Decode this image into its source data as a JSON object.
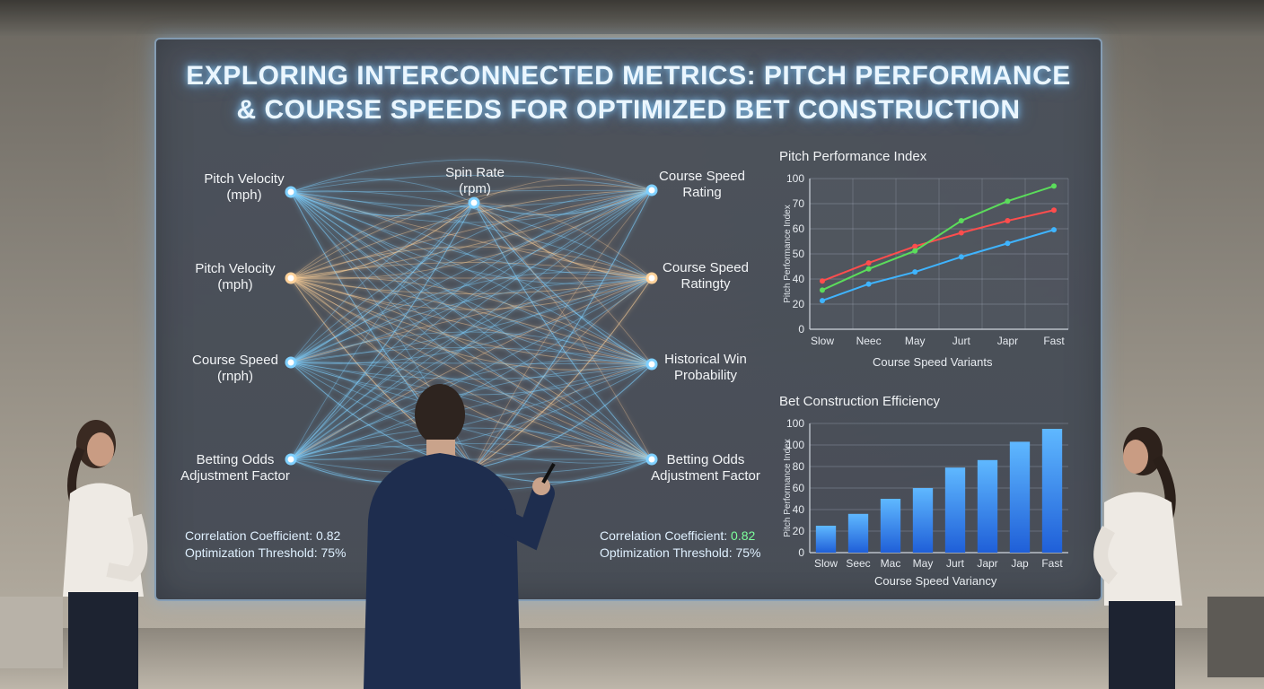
{
  "title": {
    "line1": "EXPLORING INTERCONNECTED METRICS: PITCH PERFORMANCE",
    "line2": "& COURSE SPEEDS FOR OPTIMIZED BET CONSTRUCTION"
  },
  "network": {
    "left_nodes": [
      {
        "l1": "Pitch Velocity",
        "l2": "(mph)",
        "color": "#7fd0ff"
      },
      {
        "l1": "Pitch Velocity",
        "l2": "(mph)",
        "color": "#ffd29a"
      },
      {
        "l1": "Course Speed",
        "l2": "(rnph)",
        "color": "#7fd0ff"
      },
      {
        "l1": "Betting Odds",
        "l2": "Adjustment Factor",
        "color": "#7fd0ff"
      }
    ],
    "center_nodes": [
      {
        "l1": "Spin Rate",
        "l2": "(rpm)"
      }
    ],
    "right_nodes": [
      {
        "l1": "Course Speed",
        "l2": "Rating",
        "color": "#7fd0ff"
      },
      {
        "l1": "Course Speed",
        "l2": "Ratingty",
        "color": "#ffd29a"
      },
      {
        "l1": "Historical Win",
        "l2": "Probability",
        "color": "#7fd0ff"
      },
      {
        "l1": "Betting Odds",
        "l2": "Adjustment Factor",
        "color": "#7fd0ff"
      }
    ],
    "stats_left": {
      "line1": "Correlation Coefficient: 0.82",
      "line2": "Optimization Threshold: 75%"
    },
    "stats_right": {
      "line1_prefix": "Correlation Coefficient: ",
      "line1_value": "0.82",
      "line2": "Optimization Threshold: 75%"
    }
  },
  "chart_data": [
    {
      "type": "line",
      "title": "Pitch Performance Index",
      "ylabel": "Pitch Performance Index",
      "xlabel": "Course Speed Variants",
      "categories": [
        "Slow",
        "Neec",
        "May",
        "Jurt",
        "Japr",
        "Fast"
      ],
      "yticks": [
        "0",
        "20",
        "40",
        "50",
        "60",
        "70",
        "100"
      ],
      "series": [
        {
          "color": "#ff4d4d",
          "values": [
            32,
            44,
            55,
            64,
            72,
            79
          ]
        },
        {
          "color": "#5bdc5b",
          "values": [
            26,
            40,
            52,
            72,
            85,
            95
          ]
        },
        {
          "color": "#3fb4ff",
          "values": [
            19,
            30,
            38,
            48,
            57,
            66
          ]
        }
      ]
    },
    {
      "type": "bar",
      "title": "Bet Construction Efficiency",
      "ylabel": "Pitch Performance Index",
      "xlabel": "Course Speed Variancy",
      "categories": [
        "Slow",
        "Seec",
        "Mac",
        "May",
        "Jurt",
        "Japr",
        "Jap",
        "Fast"
      ],
      "yticks": [
        "0",
        "20",
        "40",
        "60",
        "80",
        "100",
        "100"
      ],
      "values": [
        25,
        36,
        50,
        60,
        79,
        86,
        103,
        115
      ],
      "colors": {
        "bar_top": "#5fb8ff",
        "bar_bottom": "#1f5fd8"
      }
    }
  ]
}
